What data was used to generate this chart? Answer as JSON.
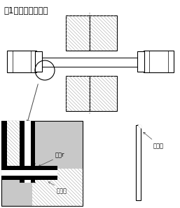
{
  "title": "図1　座金の面取り",
  "title_fontsize": 8.5,
  "bg_color": "#ffffff",
  "lc": "#000000",
  "gray": "#aaaaaa",
  "ann_c": "#444444",
  "label_nekashita_r": "首下r",
  "label_mentori1": "面取り",
  "label_mentori2": "面取り",
  "figsize": [
    2.57,
    2.96
  ],
  "dpi": 100
}
